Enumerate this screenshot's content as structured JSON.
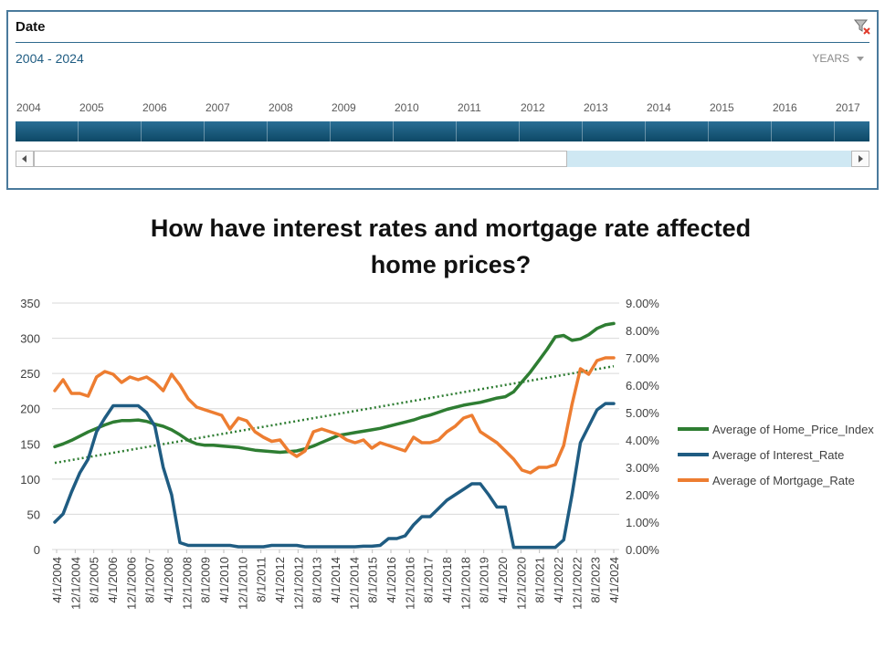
{
  "slicer": {
    "header": "Date",
    "clear_filter_icon": "clear-filter-icon",
    "range_label": "2004 - 2024",
    "level_label": "YEARS",
    "years": [
      "2004",
      "2005",
      "2006",
      "2007",
      "2008",
      "2009",
      "2010",
      "2011",
      "2012",
      "2013",
      "2014",
      "2015",
      "2016",
      "2017"
    ],
    "bar_color": "#1a5a7e",
    "scroll_track_color": "#cfe8f3"
  },
  "chart_data": {
    "type": "line",
    "title": "How have interest rates and mortgage rate affected home prices?",
    "title_lines": [
      "How have interest rates and mortgage rate affected",
      "home prices?"
    ],
    "x_ticks": [
      "4/1/2004",
      "12/1/2004",
      "8/1/2005",
      "4/1/2006",
      "12/1/2006",
      "8/1/2007",
      "4/1/2008",
      "12/1/2008",
      "8/1/2009",
      "4/1/2010",
      "12/1/2010",
      "8/1/2011",
      "4/1/2012",
      "12/1/2012",
      "8/1/2013",
      "4/1/2014",
      "12/1/2014",
      "8/1/2015",
      "4/1/2016",
      "12/1/2016",
      "8/1/2017",
      "4/1/2018",
      "12/1/2018",
      "8/1/2019",
      "4/1/2020",
      "12/1/2020",
      "8/1/2021",
      "4/1/2022",
      "12/1/2022",
      "8/1/2023",
      "4/1/2024"
    ],
    "y_left": {
      "ylim": [
        0,
        350
      ],
      "ticks": [
        "0",
        "50",
        "100",
        "150",
        "200",
        "250",
        "300",
        "350"
      ]
    },
    "y_right": {
      "ylim": [
        0,
        9
      ],
      "ticks": [
        "0.00%",
        "1.00%",
        "2.00%",
        "3.00%",
        "4.00%",
        "5.00%",
        "6.00%",
        "7.00%",
        "8.00%",
        "9.00%"
      ]
    },
    "grid": true,
    "legend_position": "right",
    "series": [
      {
        "name": "Average of Home_Price_Index",
        "axis": "left",
        "color": "#2e7d32",
        "values": [
          146,
          150,
          155,
          161,
          167,
          172,
          177,
          181,
          183,
          183,
          184,
          182,
          178,
          175,
          170,
          163,
          155,
          150,
          148,
          148,
          147,
          146,
          145,
          143,
          141,
          140,
          139,
          138,
          139,
          140,
          143,
          147,
          152,
          157,
          162,
          164,
          166,
          168,
          170,
          172,
          175,
          178,
          181,
          184,
          188,
          191,
          195,
          199,
          202,
          205,
          207,
          209,
          212,
          215,
          217,
          224,
          238,
          252,
          268,
          284,
          302,
          304,
          297,
          299,
          305,
          314,
          319,
          321
        ]
      },
      {
        "name": "Average of Interest_Rate",
        "axis": "right",
        "color": "#1f5c82",
        "values": [
          1.0,
          1.3,
          2.1,
          2.8,
          3.3,
          4.3,
          4.8,
          5.25,
          5.25,
          5.25,
          5.25,
          5.0,
          4.5,
          3.0,
          2.0,
          0.25,
          0.15,
          0.15,
          0.15,
          0.15,
          0.15,
          0.15,
          0.1,
          0.1,
          0.1,
          0.1,
          0.15,
          0.15,
          0.15,
          0.15,
          0.1,
          0.1,
          0.1,
          0.1,
          0.1,
          0.1,
          0.1,
          0.12,
          0.12,
          0.15,
          0.4,
          0.4,
          0.5,
          0.9,
          1.2,
          1.2,
          1.5,
          1.8,
          2.0,
          2.2,
          2.4,
          2.4,
          2.0,
          1.55,
          1.55,
          0.08,
          0.08,
          0.08,
          0.08,
          0.08,
          0.08,
          0.35,
          2.0,
          3.9,
          4.5,
          5.1,
          5.33,
          5.33
        ]
      },
      {
        "name": "Average of Mortgage_Rate",
        "axis": "right",
        "color": "#ed7d31",
        "values": [
          5.8,
          6.2,
          5.7,
          5.7,
          5.6,
          6.3,
          6.5,
          6.4,
          6.1,
          6.3,
          6.2,
          6.3,
          6.1,
          5.8,
          6.4,
          6.0,
          5.5,
          5.2,
          5.1,
          5.0,
          4.9,
          4.4,
          4.8,
          4.7,
          4.3,
          4.1,
          3.95,
          4.0,
          3.6,
          3.4,
          3.6,
          4.3,
          4.4,
          4.3,
          4.2,
          4.0,
          3.9,
          4.0,
          3.7,
          3.9,
          3.8,
          3.7,
          3.6,
          4.1,
          3.9,
          3.9,
          4.0,
          4.3,
          4.5,
          4.8,
          4.9,
          4.3,
          4.1,
          3.9,
          3.6,
          3.3,
          2.9,
          2.8,
          3.0,
          3.0,
          3.1,
          3.8,
          5.3,
          6.6,
          6.4,
          6.9,
          7.0,
          7.0
        ]
      }
    ]
  }
}
